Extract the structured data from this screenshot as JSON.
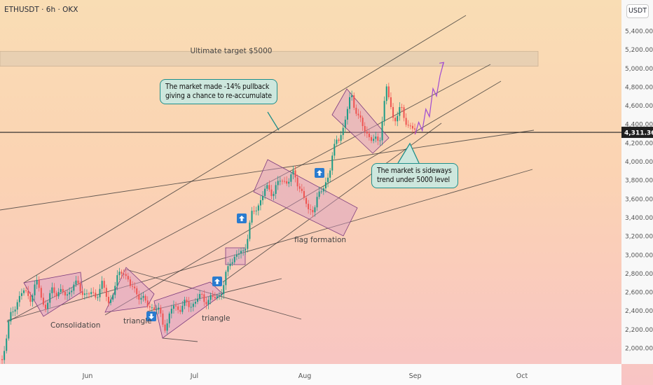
{
  "header": {
    "symbol": "ETHUSDT · 6h · OKX",
    "currency": "USDT"
  },
  "colors": {
    "grid_line": "#2f2f2f",
    "pattern_fill": "#d79ac4",
    "pattern_stroke": "#7d3b7d",
    "target_band": "#e7cfb2",
    "callout_border": "#1f8f8a",
    "callout_fill": "#cde7dd",
    "projection": "#a04bd2",
    "arrow_badge": "#2a7bcf"
  },
  "annotations": {
    "target_label": "Ultimate target $5000",
    "callout_pullback": "The market made -14% pullback giving a chance to re-accumulate",
    "callout_sideways": "The market is sideways trend under 5000 level",
    "consolidation": "Consolidation",
    "triangle_1": "triangle",
    "triangle_2": "triangle",
    "flag": "flag formation"
  },
  "chart_data": {
    "type": "candlestick",
    "symbol": "ETHUSDT",
    "interval": "6h",
    "exchange": "OKX",
    "ylim": [
      1800,
      5600
    ],
    "y_ticks": [
      "5,400.00",
      "5,200.00",
      "5,000.00",
      "4,800.00",
      "4,600.00",
      "4,400.00",
      "4,200.00",
      "4,000.00",
      "3,800.00",
      "3,600.00",
      "3,400.00",
      "3,200.00",
      "3,000.00",
      "2,800.00",
      "2,600.00",
      "2,400.00",
      "2,200.00",
      "2,000.00"
    ],
    "x_ticks": [
      "Jun",
      "Jul",
      "Aug",
      "Sep",
      "Oct"
    ],
    "current_price": "4,311.36",
    "price_path": [
      [
        "May 8",
        1880
      ],
      [
        "May 10",
        2280
      ],
      [
        "May 12",
        2500
      ],
      [
        "May 14",
        2600
      ],
      [
        "May 16",
        2550
      ],
      [
        "May 18",
        2700
      ],
      [
        "May 20",
        2420
      ],
      [
        "May 22",
        2600
      ],
      [
        "May 24",
        2620
      ],
      [
        "May 26",
        2540
      ],
      [
        "May 28",
        2700
      ],
      [
        "May 30",
        2620
      ],
      [
        "Jun 1",
        2580
      ],
      [
        "Jun 3",
        2550
      ],
      [
        "Jun 5",
        2680
      ],
      [
        "Jun 7",
        2480
      ],
      [
        "Jun 9",
        2700
      ],
      [
        "Jun 11",
        2860
      ],
      [
        "Jun 13",
        2650
      ],
      [
        "Jun 15",
        2600
      ],
      [
        "Jun 17",
        2480
      ],
      [
        "Jun 19",
        2450
      ],
      [
        "Jun 21",
        2380
      ],
      [
        "Jun 23",
        2220
      ],
      [
        "Jun 25",
        2450
      ],
      [
        "Jun 27",
        2430
      ],
      [
        "Jun 29",
        2470
      ],
      [
        "Jul 1",
        2480
      ],
      [
        "Jul 3",
        2560
      ],
      [
        "Jul 5",
        2500
      ],
      [
        "Jul 7",
        2550
      ],
      [
        "Jul 9",
        2620
      ],
      [
        "Jul 11",
        2950
      ],
      [
        "Jul 13",
        2980
      ],
      [
        "Jul 15",
        3050
      ],
      [
        "Jul 17",
        3400
      ],
      [
        "Jul 19",
        3550
      ],
      [
        "Jul 21",
        3700
      ],
      [
        "Jul 23",
        3680
      ],
      [
        "Jul 25",
        3780
      ],
      [
        "Jul 27",
        3800
      ],
      [
        "Jul 29",
        3850
      ],
      [
        "Jul 31",
        3700
      ],
      [
        "Aug 2",
        3450
      ],
      [
        "Aug 4",
        3550
      ],
      [
        "Aug 6",
        3700
      ],
      [
        "Aug 8",
        3900
      ],
      [
        "Aug 10",
        4250
      ],
      [
        "Aug 12",
        4350
      ],
      [
        "Aug 14",
        4750
      ],
      [
        "Aug 16",
        4450
      ],
      [
        "Aug 18",
        4350
      ],
      [
        "Aug 20",
        4200
      ],
      [
        "Aug 22",
        4250
      ],
      [
        "Aug 24",
        4780
      ],
      [
        "Aug 26",
        4450
      ],
      [
        "Aug 28",
        4550
      ],
      [
        "Aug 30",
        4400
      ],
      [
        "Sep 1",
        4311
      ]
    ],
    "projection": [
      [
        "Sep 1",
        4290
      ],
      [
        "Sep 2",
        4420
      ],
      [
        "Sep 3",
        4330
      ],
      [
        "Sep 4",
        4560
      ],
      [
        "Sep 5",
        4480
      ],
      [
        "Sep 6",
        4780
      ],
      [
        "Sep 7",
        4700
      ],
      [
        "Sep 8",
        4920
      ],
      [
        "Sep 9",
        5060
      ]
    ],
    "target_zone": [
      5020,
      5180
    ],
    "grid": false
  }
}
